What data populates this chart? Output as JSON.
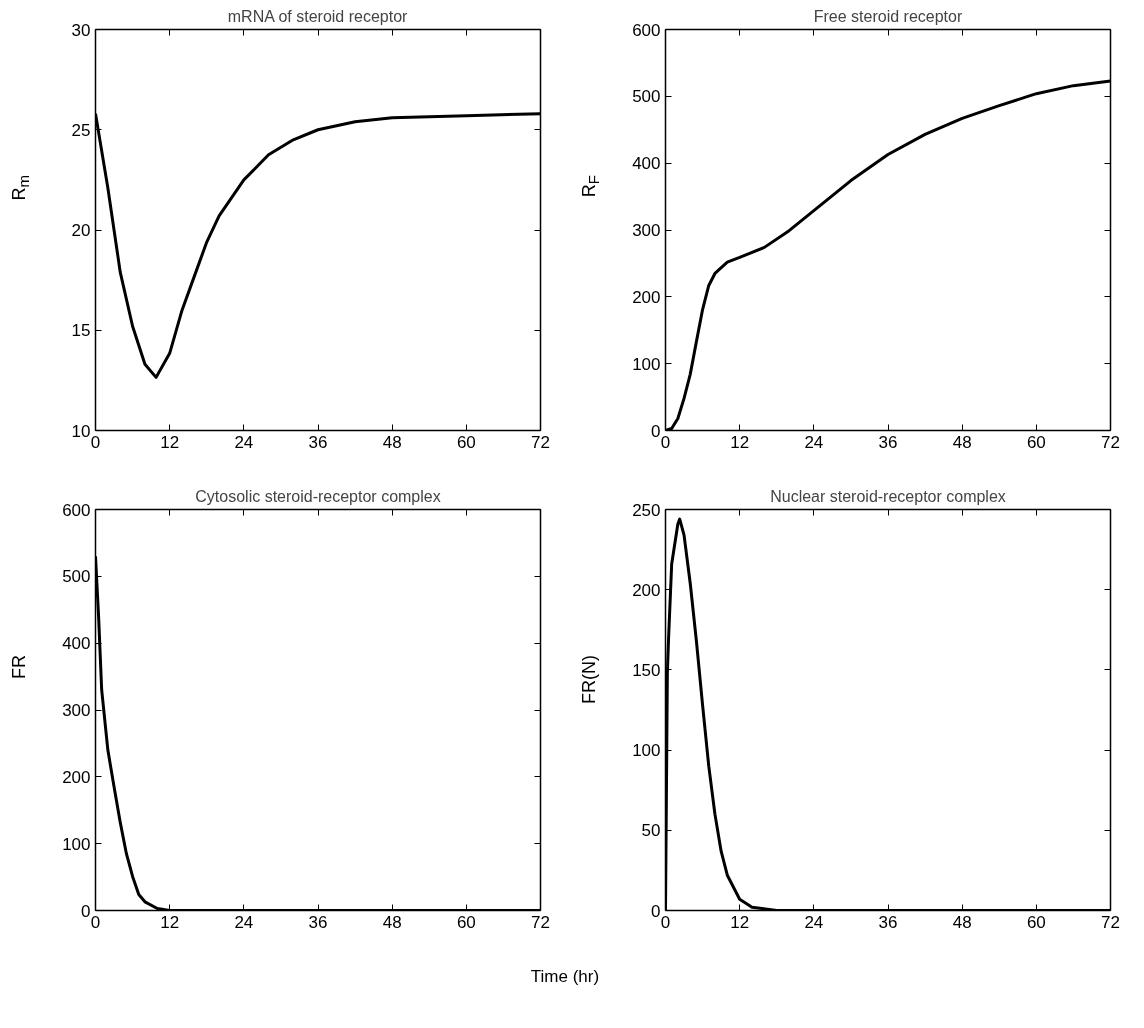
{
  "chart_data": [
    {
      "type": "line",
      "title": "mRNA of steroid receptor",
      "ylabel": "R$_{m}$",
      "xlim": [
        0,
        72
      ],
      "xticks": [
        0,
        12,
        24,
        36,
        48,
        60,
        72
      ],
      "ylim": [
        10,
        30
      ],
      "yticks": [
        10,
        15,
        20,
        25,
        30
      ],
      "grid": false,
      "line_style": "solid",
      "series": [
        {
          "color": "#000000",
          "x": [
            0,
            2,
            4,
            6,
            8,
            9.8,
            12,
            14,
            16,
            18,
            20,
            24,
            28,
            32,
            36,
            42,
            48,
            60,
            72
          ],
          "values": [
            25.8,
            22.1,
            17.9,
            15.2,
            13.3,
            12.65,
            13.85,
            16.0,
            17.7,
            19.4,
            20.7,
            22.5,
            23.75,
            24.5,
            25.0,
            25.4,
            25.6,
            25.7,
            25.8
          ]
        }
      ]
    },
    {
      "type": "line",
      "title": "Free steroid receptor",
      "ylabel": "R$_{F}$",
      "xlim": [
        0,
        72
      ],
      "xticks": [
        0,
        12,
        24,
        36,
        48,
        60,
        72
      ],
      "ylim": [
        0,
        600
      ],
      "yticks": [
        0,
        100,
        200,
        300,
        400,
        500,
        600
      ],
      "grid": false,
      "line_style": "solid",
      "series": [
        {
          "color": "#000000",
          "x": [
            0,
            1,
            2,
            3,
            4,
            5,
            6,
            7,
            8,
            10,
            12,
            16,
            20,
            24,
            30,
            36,
            42,
            48,
            54,
            60,
            66,
            72
          ],
          "values": [
            0,
            3,
            18,
            48,
            84,
            133,
            181,
            217,
            235,
            252,
            259,
            274,
            299,
            329,
            374,
            413,
            443,
            467,
            486,
            504,
            516,
            523
          ]
        }
      ]
    },
    {
      "type": "line",
      "title": "Cytosolic steroid-receptor complex",
      "ylabel": "FR",
      "xlim": [
        0,
        72
      ],
      "xticks": [
        0,
        12,
        24,
        36,
        48,
        60,
        72
      ],
      "ylim": [
        0,
        600
      ],
      "yticks": [
        0,
        100,
        200,
        300,
        400,
        500,
        600
      ],
      "grid": false,
      "line_style": "solid",
      "series": [
        {
          "color": "#000000",
          "x": [
            0,
            0.5,
            1,
            2,
            3,
            4,
            5,
            6,
            7,
            8,
            10,
            12,
            72
          ],
          "values": [
            530,
            440,
            330,
            240,
            185,
            132,
            85,
            51,
            24,
            13,
            3,
            0,
            0
          ]
        }
      ]
    },
    {
      "type": "line",
      "title": "Nuclear steroid-receptor complex",
      "ylabel": "FR(N)",
      "xlabel": "Time (hr)",
      "xlim": [
        0,
        72
      ],
      "xticks": [
        0,
        12,
        24,
        36,
        48,
        60,
        72
      ],
      "ylim": [
        0,
        250
      ],
      "yticks": [
        0,
        50,
        100,
        150,
        200,
        250
      ],
      "grid": false,
      "line_style": "solid",
      "series": [
        {
          "color": "#000000",
          "x": [
            0,
            0.3,
            0.5,
            1,
            2,
            2.3,
            3,
            4,
            5,
            6,
            7,
            8,
            9,
            10,
            12,
            14,
            18,
            72
          ],
          "values": [
            0,
            148,
            170,
            216,
            241,
            244,
            234,
            204,
            168,
            128,
            90,
            60,
            37,
            22,
            7,
            2,
            0,
            0
          ]
        }
      ]
    }
  ]
}
